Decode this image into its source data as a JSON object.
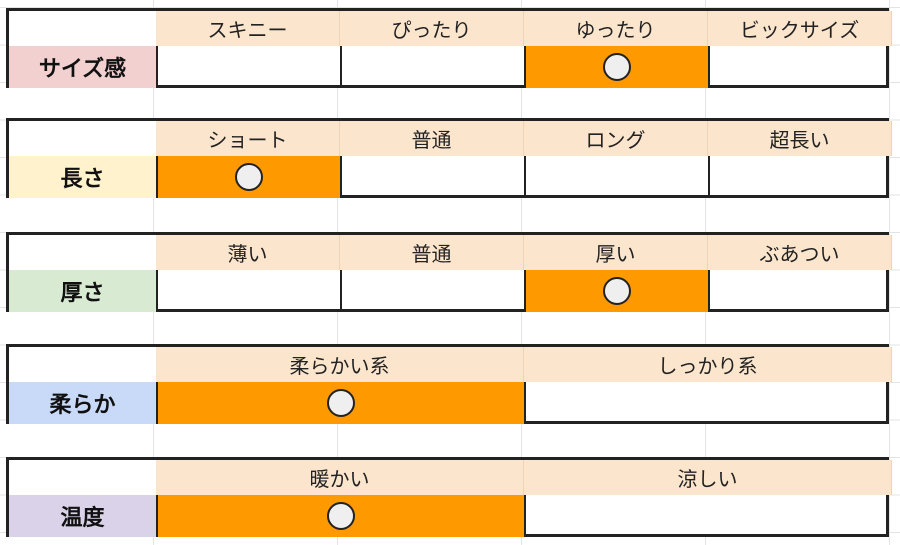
{
  "colors": {
    "header_bg": "#fce5cd",
    "selected": "#ff9900",
    "circle": "#efefef"
  },
  "selected_mark": "circle-icon",
  "rows": [
    {
      "label": "サイズ感",
      "label_color": "#f2d0d0",
      "options": [
        "スキニー",
        "ぴったり",
        "ゆったり",
        "ビックサイズ"
      ],
      "selected": 2
    },
    {
      "label": "長さ",
      "label_color": "#fff2cc",
      "options": [
        "ショート",
        "普通",
        "ロング",
        "超長い"
      ],
      "selected": 0
    },
    {
      "label": "厚さ",
      "label_color": "#d9ead3",
      "options": [
        "薄い",
        "普通",
        "厚い",
        "ぶあつい"
      ],
      "selected": 2
    },
    {
      "label": "柔らか",
      "label_color": "#c9daf8",
      "options": [
        "柔らかい系",
        "しっかり系"
      ],
      "selected": 0
    },
    {
      "label": "温度",
      "label_color": "#d9d2e9",
      "options": [
        "暖かい",
        "涼しい"
      ],
      "selected": 0
    }
  ]
}
